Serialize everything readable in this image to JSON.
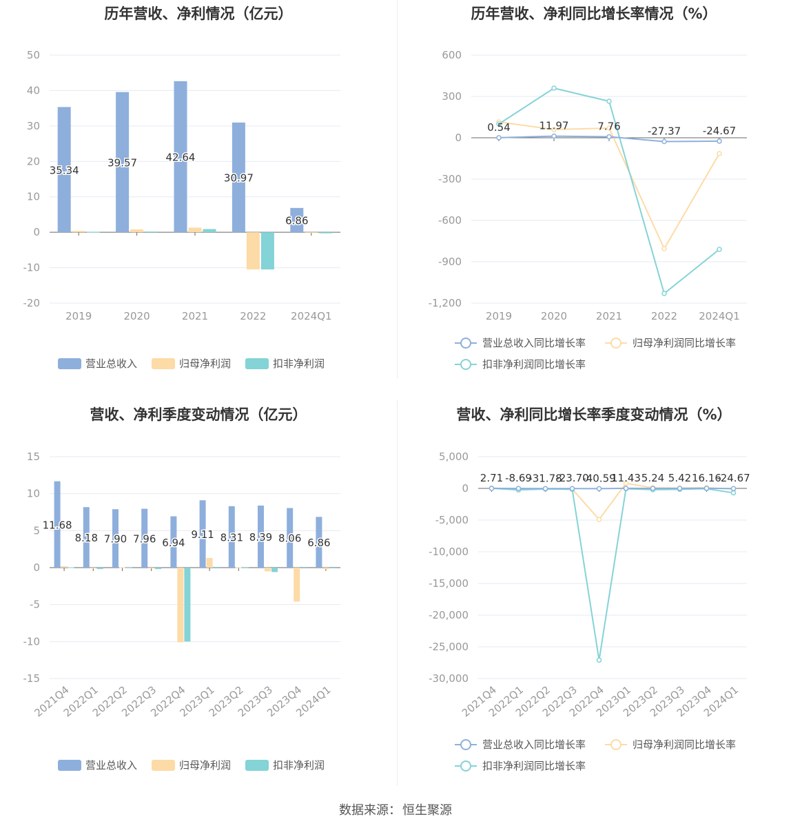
{
  "colors": {
    "revenue": "#8eafdc",
    "net_profit": "#fddba6",
    "deducted_profit": "#84d3d6",
    "grid": "#e6e9f3",
    "axis_text": "#999999",
    "label_text": "#333333"
  },
  "source": {
    "label": "数据来源：",
    "value": "恒生聚源"
  },
  "chart_data": [
    {
      "type": "bar",
      "title": "历年营收、净利情况（亿元）",
      "categories": [
        "2019",
        "2020",
        "2021",
        "2022",
        "2024Q1"
      ],
      "ylim": [
        -20,
        50
      ],
      "yticks": [
        -20,
        -10,
        0,
        10,
        20,
        30,
        40,
        50
      ],
      "series": [
        {
          "name": "营业总收入",
          "values": [
            35.34,
            39.57,
            42.64,
            30.97,
            6.86
          ],
          "data_labels": [
            "35.34",
            "39.57",
            "42.64",
            "30.97",
            "6.86"
          ]
        },
        {
          "name": "归母净利润",
          "values": [
            0.4,
            0.8,
            1.3,
            -10.5,
            -0.1
          ]
        },
        {
          "name": "扣非净利润",
          "values": [
            0.1,
            0.2,
            0.9,
            -10.5,
            -0.3
          ]
        }
      ],
      "legend": "bottom"
    },
    {
      "type": "line",
      "title": "历年营收、净利同比增长率情况（%）",
      "categories": [
        "2019",
        "2020",
        "2021",
        "2022",
        "2024Q1"
      ],
      "ylim": [
        -1200,
        600
      ],
      "yticks": [
        -1200,
        -900,
        -600,
        -300,
        0,
        300,
        600
      ],
      "ytick_labels": [
        "-1,200",
        "-900",
        "-600",
        "-300",
        "0",
        "300",
        "600"
      ],
      "series": [
        {
          "name": "营业总收入同比增长率",
          "values": [
            0.54,
            11.97,
            7.76,
            -27.37,
            -24.67
          ],
          "data_labels": [
            "0.54",
            "11.97",
            "7.76",
            "-27.37",
            "-24.67"
          ]
        },
        {
          "name": "归母净利润同比增长率",
          "values": [
            115,
            60,
            70,
            -805,
            -115
          ]
        },
        {
          "name": "扣非净利润同比增长率",
          "values": [
            100,
            360,
            265,
            -1130,
            -810
          ]
        }
      ],
      "legend": "bottom"
    },
    {
      "type": "bar",
      "title": "营收、净利季度变动情况（亿元）",
      "categories": [
        "2021Q4",
        "2022Q1",
        "2022Q2",
        "2022Q3",
        "2022Q4",
        "2023Q1",
        "2023Q2",
        "2023Q3",
        "2023Q4",
        "2024Q1"
      ],
      "ylim": [
        -15,
        15
      ],
      "yticks": [
        -15,
        -10,
        -5,
        0,
        5,
        10,
        15
      ],
      "series": [
        {
          "name": "营业总收入",
          "values": [
            11.68,
            8.18,
            7.9,
            7.96,
            6.94,
            9.11,
            8.31,
            8.39,
            8.06,
            6.86
          ],
          "data_labels": [
            "11.68",
            "8.18",
            "7.90",
            "7.96",
            "6.94",
            "9.11",
            "8.31",
            "8.39",
            "8.06",
            "6.86"
          ]
        },
        {
          "name": "归母净利润",
          "values": [
            0.2,
            -0.1,
            0.05,
            -0.1,
            -10.1,
            1.3,
            0.05,
            -0.5,
            -4.6,
            -0.2
          ]
        },
        {
          "name": "扣非净利润",
          "values": [
            0.05,
            -0.2,
            0.02,
            -0.2,
            -10.0,
            0.1,
            0.02,
            -0.6,
            0.1,
            0.0
          ]
        }
      ],
      "legend": "bottom"
    },
    {
      "type": "line",
      "title": "营收、净利同比增长率季度变动情况（%）",
      "categories": [
        "2021Q4",
        "2022Q1",
        "2022Q2",
        "2022Q3",
        "2022Q4",
        "2023Q1",
        "2023Q2",
        "2023Q3",
        "2023Q4",
        "2024Q1"
      ],
      "ylim": [
        -30000,
        5000
      ],
      "yticks": [
        -30000,
        -25000,
        -20000,
        -15000,
        -10000,
        -5000,
        0,
        5000
      ],
      "ytick_labels": [
        "-30,000",
        "-25,000",
        "-20,000",
        "-15,000",
        "-10,000",
        "-5,000",
        "0",
        "5,000"
      ],
      "series": [
        {
          "name": "营业总收入同比增长率",
          "values": [
            2.71,
            -8.69,
            -31.78,
            -23.7,
            -40.59,
            11.43,
            5.24,
            5.42,
            16.16,
            -24.67
          ],
          "data_labels": [
            "2.71",
            "-8.69",
            "-31.78",
            "-23.70",
            "-40.59",
            "11.43",
            "5.24",
            "5.42",
            "16.16",
            "-24.67"
          ]
        },
        {
          "name": "归母净利润同比增长率",
          "values": [
            50,
            -100,
            -80,
            -100,
            -4900,
            800,
            100,
            50,
            100,
            -100
          ]
        },
        {
          "name": "扣非净利润同比增长率",
          "values": [
            20,
            -250,
            -100,
            -150,
            -27100,
            -50,
            -200,
            -150,
            -50,
            -700
          ]
        }
      ],
      "legend": "bottom"
    }
  ]
}
